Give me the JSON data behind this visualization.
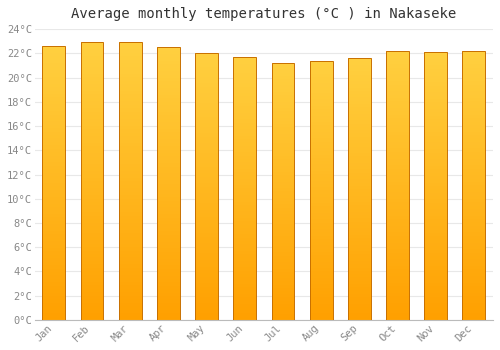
{
  "title": "Average monthly temperatures (°C ) in Nakaseke",
  "months": [
    "Jan",
    "Feb",
    "Mar",
    "Apr",
    "May",
    "Jun",
    "Jul",
    "Aug",
    "Sep",
    "Oct",
    "Nov",
    "Dec"
  ],
  "values": [
    22.6,
    22.9,
    22.9,
    22.5,
    22.0,
    21.7,
    21.2,
    21.4,
    21.6,
    22.2,
    22.1,
    22.2
  ],
  "ylim": [
    0,
    24
  ],
  "ytick_step": 2,
  "bar_color_left": "#FFD040",
  "bar_color_right": "#FFA000",
  "bar_color_bottom": "#FF8C00",
  "bar_border_color": "#C87000",
  "background_color": "#ffffff",
  "grid_color": "#e8e8e8",
  "title_fontsize": 10,
  "tick_fontsize": 7.5,
  "bar_width": 0.6
}
